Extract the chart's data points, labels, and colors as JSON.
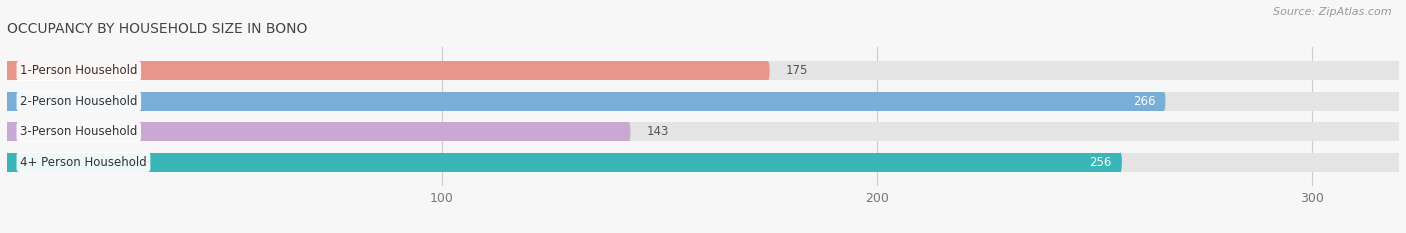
{
  "title": "OCCUPANCY BY HOUSEHOLD SIZE IN BONO",
  "source": "Source: ZipAtlas.com",
  "categories": [
    "1-Person Household",
    "2-Person Household",
    "3-Person Household",
    "4+ Person Household"
  ],
  "values": [
    175,
    266,
    143,
    256
  ],
  "bar_colors": [
    "#e8958a",
    "#7aaed6",
    "#c9a8d4",
    "#3ab5b8"
  ],
  "xlim": [
    0,
    320
  ],
  "xticks": [
    100,
    200,
    300
  ],
  "figsize": [
    14.06,
    2.33
  ],
  "dpi": 100,
  "bar_height": 0.62,
  "title_fontsize": 10,
  "label_fontsize": 8.5,
  "value_fontsize": 8.5,
  "tick_fontsize": 9,
  "source_fontsize": 8,
  "bg_color": "#f0f0f0",
  "bar_bg_color": "#e4e4e4",
  "fig_bg": "#f7f7f7"
}
